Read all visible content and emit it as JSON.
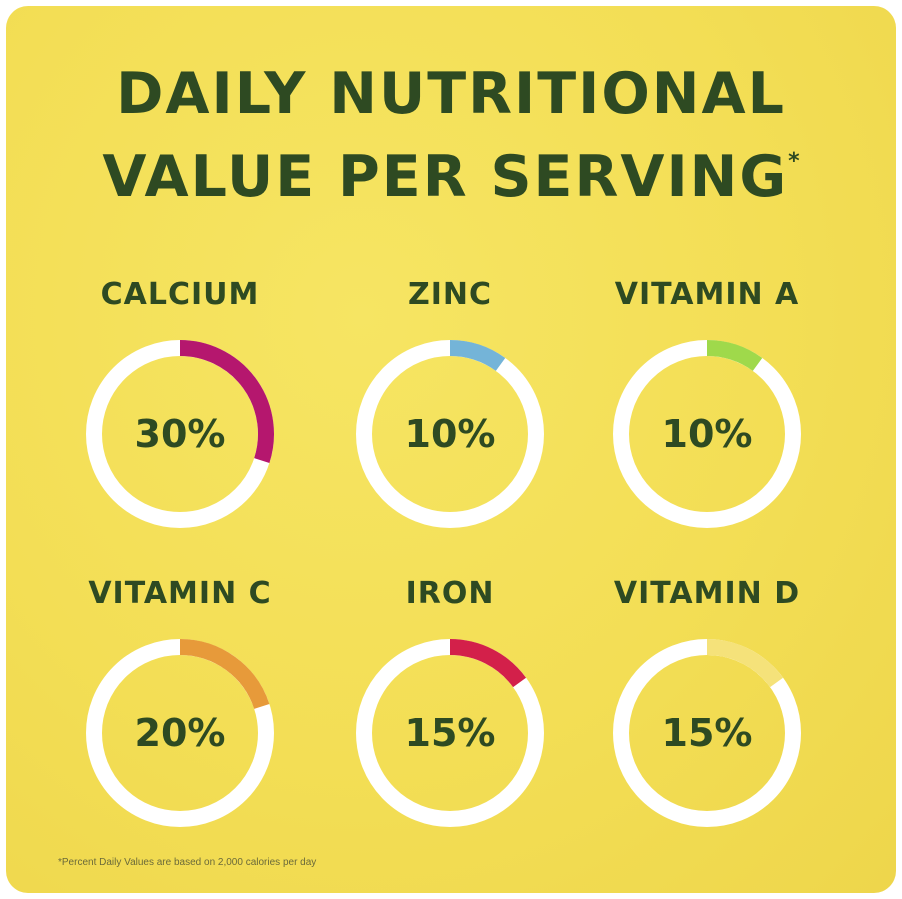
{
  "title": {
    "line1": "DAILY NUTRITIONAL",
    "line2": "VALUE PER SERVING",
    "asterisk": "*"
  },
  "footnote": "*Percent Daily Values are based on 2,000 calories per day",
  "colors": {
    "background": "#f3de55",
    "text": "#2e4a22",
    "ring_track": "#ffffff"
  },
  "chart_data": {
    "type": "pie",
    "items": [
      {
        "label": "CALCIUM",
        "value": 30,
        "display": "30%",
        "color": "#b5176e"
      },
      {
        "label": "ZINC",
        "value": 10,
        "display": "10%",
        "color": "#74b4d8"
      },
      {
        "label": "VITAMIN A",
        "value": 10,
        "display": "10%",
        "color": "#9fd94b"
      },
      {
        "label": "VITAMIN C",
        "value": 20,
        "display": "20%",
        "color": "#e79a3a"
      },
      {
        "label": "IRON",
        "value": 15,
        "display": "15%",
        "color": "#d3204a"
      },
      {
        "label": "VITAMIN D",
        "value": 15,
        "display": "15%",
        "color": "#f5e27a"
      }
    ]
  }
}
